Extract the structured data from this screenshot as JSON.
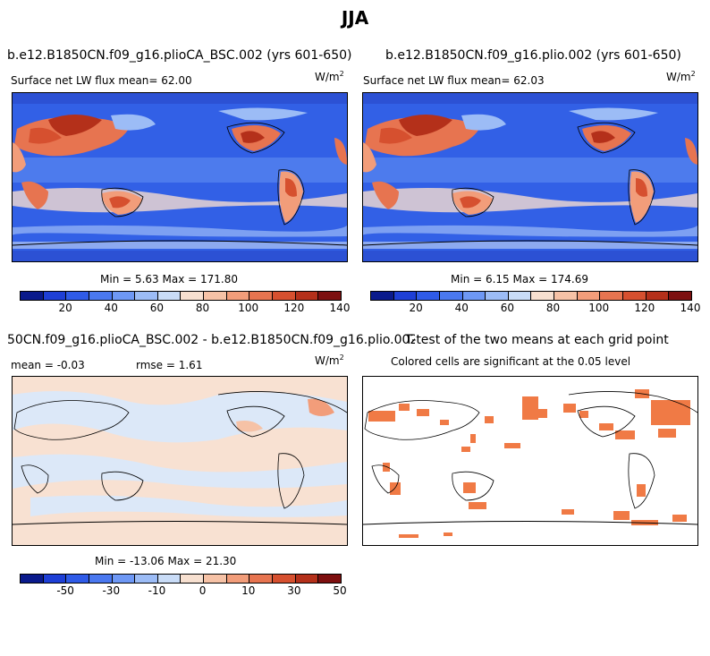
{
  "page_title": "JJA",
  "panels": {
    "top_left": {
      "title": "b.e12.B1850CN.f09_g16.plioCA_BSC.002 (yrs 601-650)",
      "subtitle": "Surface net LW flux mean=  62.00",
      "units": "W/m",
      "units_exp": "2",
      "minmax": "Min =    5.63 Max = 171.80"
    },
    "top_right": {
      "title": "b.e12.B1850CN.f09_g16.plio.002 (yrs 601-650)",
      "subtitle": "Surface net LW flux mean=  62.03",
      "units": "W/m",
      "units_exp": "2",
      "minmax": "Min =    6.15 Max = 174.69"
    },
    "bottom_left": {
      "title": "50CN.f09_g16.plioCA_BSC.002 - b.e12.B1850CN.f09_g16.plio.002",
      "subtitle_mean": "mean =   -0.03",
      "subtitle_rmse": "rmse =    1.61",
      "units": "W/m",
      "units_exp": "2",
      "minmax": "Min = -13.06 Max =  21.30"
    },
    "bottom_right": {
      "title": "T-test of the two means at each grid point",
      "subtitle": "Colored cells are significant at the 0.05 level"
    }
  },
  "colorbar_abs": {
    "colors": [
      "#0a1a8c",
      "#1e3fd6",
      "#2f5be8",
      "#4a78f0",
      "#6e98f5",
      "#9cbcf6",
      "#c9dcf7",
      "#f7e0d0",
      "#f6c2a6",
      "#f29d7a",
      "#e77450",
      "#d6502f",
      "#b4301a",
      "#7d0f0f"
    ],
    "ticks": [
      "20",
      "40",
      "60",
      "80",
      "100",
      "120",
      "140"
    ]
  },
  "colorbar_diff": {
    "colors": [
      "#0a1a8c",
      "#1e3fd6",
      "#2f5be8",
      "#4a78f0",
      "#6e98f5",
      "#9cbcf6",
      "#c9dcf7",
      "#f7e0d0",
      "#f6c2a6",
      "#f29d7a",
      "#e77450",
      "#d6502f",
      "#b4301a",
      "#7d0f0f"
    ],
    "ticks": [
      "-50",
      "-30",
      "-10",
      "0",
      "10",
      "30",
      "50"
    ]
  },
  "chart_data": [
    {
      "type": "heatmap",
      "title": "b.e12.B1850CN.f09_g16.plioCA_BSC.002 (yrs 601-650)",
      "variable": "Surface net LW flux",
      "mean": 62.0,
      "min": 5.63,
      "max": 171.8,
      "units": "W/m2",
      "colorbar_ticks": [
        20,
        40,
        60,
        80,
        100,
        120,
        140
      ]
    },
    {
      "type": "heatmap",
      "title": "b.e12.B1850CN.f09_g16.plio.002 (yrs 601-650)",
      "variable": "Surface net LW flux",
      "mean": 62.03,
      "min": 6.15,
      "max": 174.69,
      "units": "W/m2",
      "colorbar_ticks": [
        20,
        40,
        60,
        80,
        100,
        120,
        140
      ]
    },
    {
      "type": "heatmap",
      "title": "50CN.f09_g16.plioCA_BSC.002 - b.e12.B1850CN.f09_g16.plio.002",
      "mean": -0.03,
      "rmse": 1.61,
      "min": -13.06,
      "max": 21.3,
      "units": "W/m2",
      "colorbar_ticks": [
        -50,
        -30,
        -10,
        0,
        10,
        30,
        50
      ]
    },
    {
      "type": "heatmap",
      "title": "T-test of the two means at each grid point",
      "note": "Colored cells are significant at the 0.05 level"
    }
  ]
}
